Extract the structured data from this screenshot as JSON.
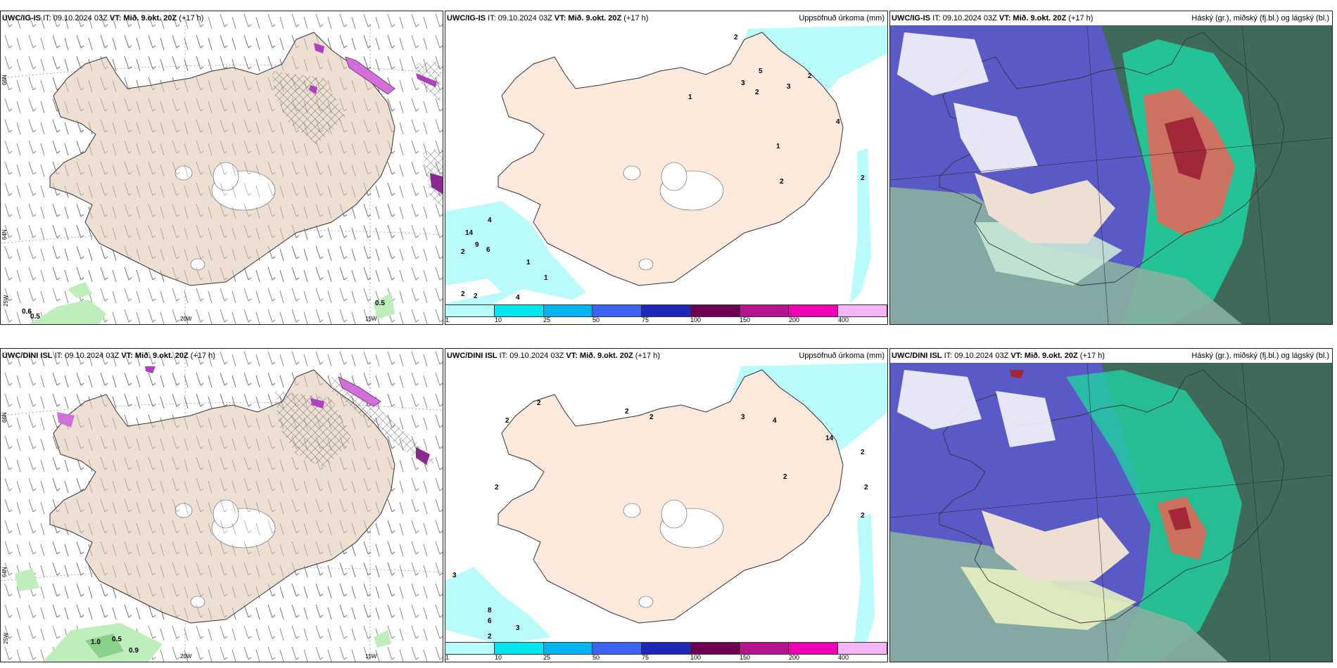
{
  "panels": [
    {
      "id": "p1",
      "model": "UWC/IG-IS",
      "it_label": "IT: 09.10.2024 03Z",
      "vt_label": "VT: Mið. 9.okt. 20Z",
      "lead": "(+17 h)",
      "right_title": ""
    },
    {
      "id": "p2",
      "model": "UWC/IG-IS",
      "it_label": "IT: 09.10.2024 03Z",
      "vt_label": "VT: Mið. 9.okt. 20Z",
      "lead": "(+17 h)",
      "right_title": "Uppsöfnuð úrkoma (mm)"
    },
    {
      "id": "p3",
      "model": "UWC/IG-IS",
      "it_label": "IT: 09.10.2024 03Z",
      "vt_label": "VT: Mið. 9.okt. 20Z",
      "lead": "(+17 h)",
      "right_title": "Háský (gr.), miðský (fj.bl.) og lágský (bl.)"
    },
    {
      "id": "p4",
      "model": "UWC/DINI ISL",
      "it_label": "IT: 09.10.2024 03Z",
      "vt_label": "VT: Mið. 9.okt. 20Z",
      "lead": "(+17 h)",
      "right_title": ""
    },
    {
      "id": "p5",
      "model": "UWC/DINI ISL",
      "it_label": "IT: 09.10.2024 03Z",
      "vt_label": "VT: Mið. 9.okt. 20Z",
      "lead": "(+17 h)",
      "right_title": "Uppsöfnuð úrkoma (mm)"
    },
    {
      "id": "p6",
      "model": "UWC/DINI ISL",
      "it_label": "IT: 09.10.2024 03Z",
      "vt_label": "VT: Mið. 9.okt. 20Z",
      "lead": "(+17 h)",
      "right_title": "Háský (gr.), miðský (fj.bl.) og lágský (bl.)"
    }
  ],
  "axis_labels": {
    "lon_20w": "20W",
    "lon_15w": "15W",
    "lon_25w": "25W",
    "lat_66n": "66N",
    "lat_64n": "64N"
  },
  "colorbar": {
    "ticks": [
      "1",
      "10",
      "25",
      "50",
      "75",
      "100",
      "150",
      "200",
      "400"
    ],
    "colors": [
      "#b9fafa",
      "#00e6f0",
      "#00b4f0",
      "#3c64f0",
      "#1e28b4",
      "#6e0050",
      "#b4148c",
      "#f000b4",
      "#f5b4f5"
    ]
  },
  "precip_values": {
    "p1": [
      "0.6",
      "0.5",
      "0.5"
    ],
    "p2": [
      "2",
      "5",
      "3",
      "2",
      "1",
      "2",
      "3",
      "4",
      "1",
      "2",
      "2",
      "14",
      "4",
      "9",
      "6",
      "2",
      "1",
      "1",
      "2",
      "2",
      "4"
    ],
    "p4": [
      "1.0",
      "0.5",
      "0.9"
    ],
    "p5": [
      "2",
      "2",
      "2",
      "2",
      "3",
      "4",
      "14",
      "2",
      "2",
      "2",
      "2",
      "2",
      "3",
      "8",
      "6",
      "3",
      "2"
    ]
  },
  "colors": {
    "land": "#ede0d2",
    "ocean": "#ffffff",
    "precip_light": "#b9fafa",
    "hatch": "#555555",
    "cloud_high": "#00d290",
    "cloud_mid": "#5050c8",
    "cloud_low": "#a0a0a0"
  }
}
